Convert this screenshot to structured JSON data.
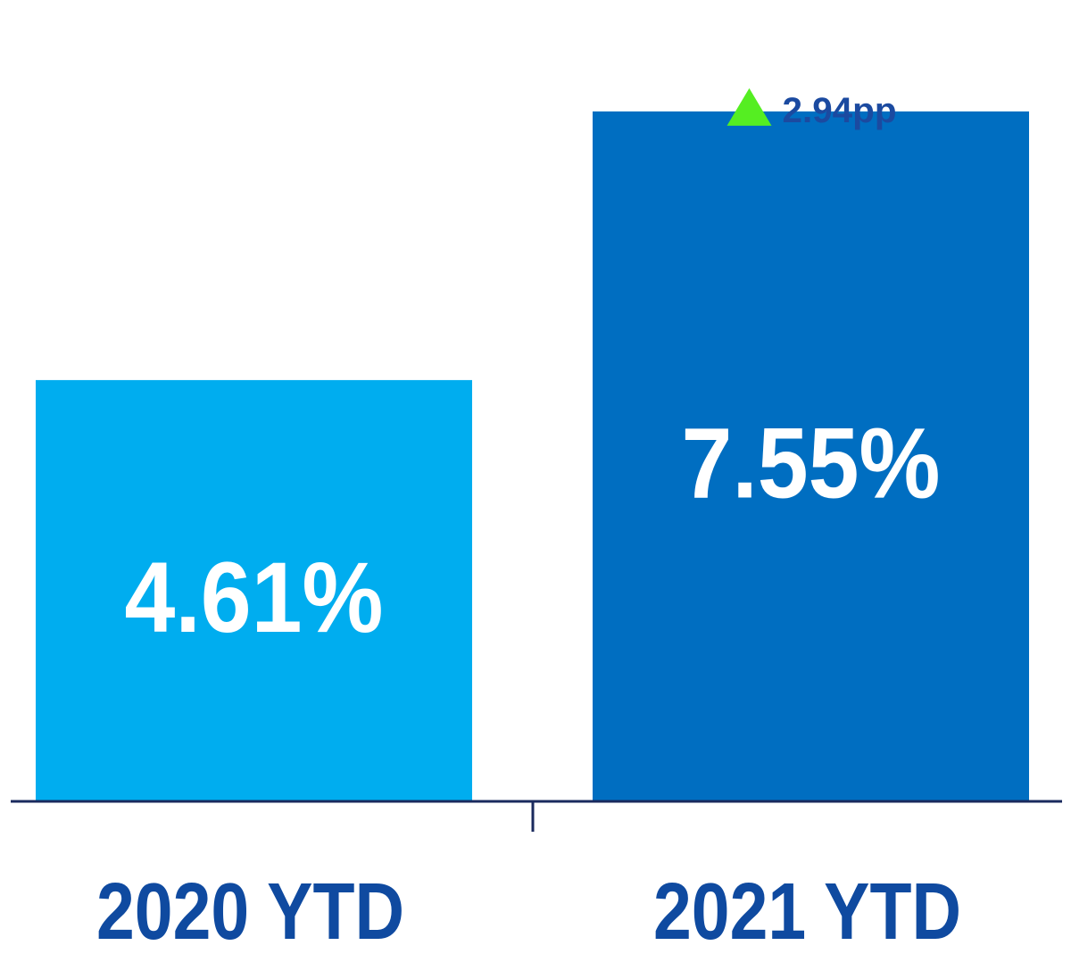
{
  "chart_data": {
    "type": "bar",
    "categories": [
      "2020 YTD",
      "2021 YTD"
    ],
    "values": [
      4.61,
      7.55
    ],
    "value_labels": [
      "4.61%",
      "7.55%"
    ],
    "colors": [
      "#00adef",
      "#006ec1"
    ],
    "title": "",
    "xlabel": "",
    "ylabel": "",
    "ylim": [
      0,
      7.9
    ],
    "grid": false,
    "annotation": {
      "text": "2.94pp",
      "direction": "up",
      "arrow_color": "#55ee22",
      "text_color": "#1b4aa0",
      "category": "2021 YTD"
    },
    "axis_color": "#1a2a5e",
    "label_color": "#0f4aa0"
  }
}
